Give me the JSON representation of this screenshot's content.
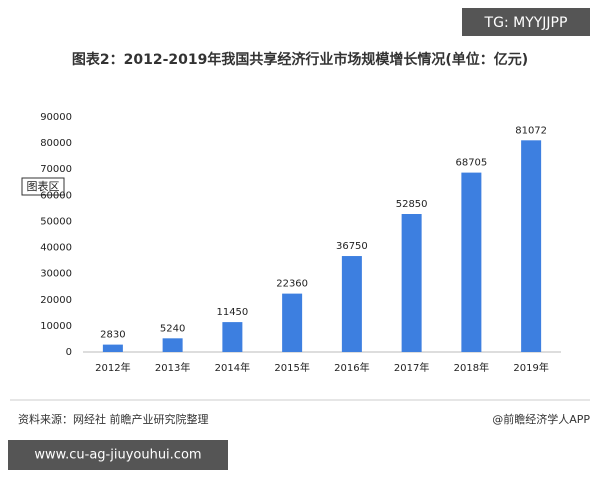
{
  "badge": "TG: MYYJJPP",
  "chart_area_label": "图表区",
  "source": "资料来源：网经社 前瞻产业研究院整理",
  "credit": "@前瞻经济学人APP",
  "footer_url": "www.cu-ag-jiuyouhui.com",
  "chart_data": {
    "type": "bar",
    "title": "图表2：2012-2019年我国共享经济行业市场规模增长情况(单位：亿元)",
    "categories": [
      "2012年",
      "2013年",
      "2014年",
      "2015年",
      "2016年",
      "2017年",
      "2018年",
      "2019年"
    ],
    "values": [
      2830,
      5240,
      11450,
      22360,
      36750,
      52850,
      68705,
      81072
    ],
    "color": "#3d7fe0",
    "ylim": [
      0,
      90000
    ],
    "yticks": [
      0,
      10000,
      20000,
      30000,
      40000,
      50000,
      60000,
      70000,
      80000,
      90000
    ],
    "grid": false
  }
}
